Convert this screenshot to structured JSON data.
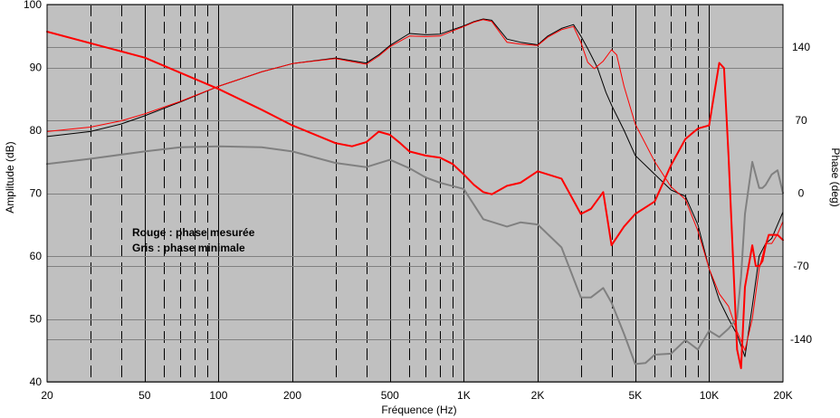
{
  "chart_data": {
    "type": "line",
    "xlabel": "Fréquence (Hz)",
    "ylabel": "Amplitude (dB)",
    "y2label": "Phase (deg)",
    "x_scale": "log",
    "xlim": [
      20,
      20000
    ],
    "ylim": [
      40,
      100
    ],
    "y2lim": [
      -181,
      181
    ],
    "grid": true,
    "background": "#c0c0c0",
    "x_ticks": [
      {
        "v": 20,
        "label": "20"
      },
      {
        "v": 50,
        "label": "50"
      },
      {
        "v": 100,
        "label": "100"
      },
      {
        "v": 200,
        "label": "200"
      },
      {
        "v": 500,
        "label": "500"
      },
      {
        "v": 1000,
        "label": "1K"
      },
      {
        "v": 2000,
        "label": "2K"
      },
      {
        "v": 5000,
        "label": "5K"
      },
      {
        "v": 10000,
        "label": "10K"
      },
      {
        "v": 20000,
        "label": "20K"
      }
    ],
    "y_ticks": [
      {
        "v": 40,
        "label": "40"
      },
      {
        "v": 50,
        "label": "50"
      },
      {
        "v": 60,
        "label": "60"
      },
      {
        "v": 70,
        "label": "70"
      },
      {
        "v": 80,
        "label": "80"
      },
      {
        "v": 90,
        "label": "90"
      },
      {
        "v": 100,
        "label": "100"
      }
    ],
    "y2_ticks": [
      {
        "v": 140,
        "label": "140"
      },
      {
        "v": 70,
        "label": "70"
      },
      {
        "v": 0,
        "label": "0"
      },
      {
        "v": -70,
        "label": "-70"
      },
      {
        "v": -140,
        "label": "-140"
      }
    ],
    "vertical_grid": [
      {
        "v": 30,
        "style": "dashed"
      },
      {
        "v": 40,
        "style": "dashed"
      },
      {
        "v": 50,
        "style": "solid"
      },
      {
        "v": 60,
        "style": "dashed"
      },
      {
        "v": 70,
        "style": "dashed"
      },
      {
        "v": 80,
        "style": "dashed"
      },
      {
        "v": 90,
        "style": "dashed"
      },
      {
        "v": 100,
        "style": "solid"
      },
      {
        "v": 200,
        "style": "solid"
      },
      {
        "v": 300,
        "style": "dashed"
      },
      {
        "v": 400,
        "style": "dashed"
      },
      {
        "v": 500,
        "style": "solid"
      },
      {
        "v": 600,
        "style": "dashed"
      },
      {
        "v": 700,
        "style": "dashed"
      },
      {
        "v": 800,
        "style": "dashed"
      },
      {
        "v": 900,
        "style": "dashed"
      },
      {
        "v": 1000,
        "style": "solid"
      },
      {
        "v": 2000,
        "style": "solid"
      },
      {
        "v": 3000,
        "style": "dashed"
      },
      {
        "v": 4000,
        "style": "dashed"
      },
      {
        "v": 5000,
        "style": "solid"
      },
      {
        "v": 6000,
        "style": "dashed"
      },
      {
        "v": 7000,
        "style": "dashed"
      },
      {
        "v": 8000,
        "style": "dashed"
      },
      {
        "v": 9000,
        "style": "dashed"
      },
      {
        "v": 10000,
        "style": "solid"
      }
    ],
    "annotations": [
      {
        "text": "Rouge : phase mesurée"
      },
      {
        "text": "Gris : phase minimale"
      }
    ],
    "series": [
      {
        "axis": "left",
        "color": "#000000",
        "width": 1,
        "x": [
          20,
          30,
          40,
          50,
          70,
          100,
          150,
          200,
          300,
          400,
          450,
          500,
          600,
          700,
          800,
          900,
          1000,
          1100,
          1200,
          1300,
          1500,
          1700,
          2000,
          2200,
          2500,
          2800,
          3000,
          3200,
          3500,
          3800,
          4000,
          4500,
          5000,
          6000,
          7000,
          8000,
          9000,
          10000,
          11000,
          12000,
          13000,
          14000,
          15000,
          16000,
          17000,
          18000,
          19000,
          20000
        ],
        "y": [
          79,
          79.8,
          81,
          82.3,
          84.5,
          87,
          89.3,
          90.6,
          91.5,
          90.7,
          92,
          93.5,
          95.4,
          95.2,
          95.3,
          96,
          96.6,
          97.3,
          97.7,
          97.5,
          94.5,
          94,
          93.6,
          95,
          96.2,
          96.8,
          95,
          93,
          90,
          86,
          84,
          80,
          76,
          73,
          70.5,
          69.5,
          65,
          58,
          53,
          50,
          47.5,
          44,
          52,
          60,
          62,
          62.8,
          65,
          67
        ]
      },
      {
        "axis": "left",
        "color": "#ff0000",
        "width": 1,
        "x": [
          20,
          30,
          40,
          50,
          70,
          100,
          150,
          200,
          300,
          400,
          450,
          500,
          600,
          700,
          800,
          900,
          1000,
          1100,
          1200,
          1300,
          1500,
          1700,
          2000,
          2200,
          2500,
          2800,
          3000,
          3200,
          3400,
          3700,
          4000,
          4200,
          4500,
          5000,
          6000,
          7000,
          8000,
          9000,
          10000,
          11000,
          12000,
          13000,
          14000,
          15000,
          16000,
          17000,
          18000,
          19000,
          20000
        ],
        "y": [
          79.8,
          80.5,
          81.5,
          82.6,
          84.6,
          87,
          89.3,
          90.6,
          91.4,
          90.5,
          91.8,
          93.3,
          95,
          94.9,
          95,
          95.8,
          96.5,
          97.2,
          97.6,
          97.3,
          94,
          93.7,
          93.5,
          94.8,
          96,
          96.5,
          94,
          90.8,
          89.8,
          91,
          92.8,
          92,
          87,
          81,
          75,
          71,
          69,
          64,
          58,
          54,
          52,
          48,
          45,
          50,
          58,
          62,
          62,
          63.5,
          65.5
        ]
      },
      {
        "axis": "right",
        "color": "#808080",
        "width": 2,
        "x": [
          20,
          30,
          50,
          70,
          100,
          150,
          200,
          300,
          400,
          500,
          600,
          700,
          800,
          1000,
          1200,
          1500,
          1700,
          2000,
          2500,
          3000,
          3300,
          3700,
          4000,
          4500,
          5000,
          5500,
          6000,
          7000,
          8000,
          9000,
          10000,
          11000,
          12000,
          13000,
          13500,
          14000,
          15000,
          16000,
          16500,
          17000,
          18000,
          19000,
          20000
        ],
        "y": [
          28,
          33,
          40,
          44,
          45,
          44,
          40,
          29,
          25,
          32,
          24,
          15,
          10,
          4,
          -25,
          -32,
          -28,
          -30,
          -52,
          -100,
          -100,
          -91,
          -105,
          -135,
          -164,
          -163,
          -155,
          -154,
          -141,
          -150,
          -132,
          -138,
          -130,
          -120,
          -80,
          -20,
          30,
          5,
          5,
          8,
          18,
          22,
          0
        ]
      },
      {
        "axis": "right",
        "color": "#ff0000",
        "width": 2,
        "x": [
          20,
          50,
          100,
          150,
          200,
          300,
          350,
          400,
          450,
          500,
          550,
          600,
          700,
          800,
          900,
          1000,
          1100,
          1200,
          1300,
          1500,
          1700,
          2000,
          2500,
          3000,
          3300,
          3700,
          4000,
          4500,
          5000,
          6000,
          7000,
          8000,
          9000,
          10000,
          11000,
          11500,
          12000,
          12500,
          13000,
          13500,
          14000,
          15000,
          15500,
          16000,
          16500,
          17000,
          17500,
          18000,
          19000,
          20000
        ],
        "y": [
          155,
          130,
          100,
          80,
          65,
          48,
          45,
          49,
          59,
          56,
          48,
          40,
          36,
          34,
          28,
          18,
          8,
          1,
          -1,
          7,
          10,
          21,
          14,
          -20,
          -15,
          1,
          -50,
          -32,
          -20,
          -8,
          27,
          52,
          62,
          65,
          125,
          120,
          35,
          -60,
          -150,
          -168,
          -90,
          -50,
          -70,
          -70,
          -65,
          -50,
          -40,
          -40,
          -40,
          -45
        ]
      }
    ]
  }
}
